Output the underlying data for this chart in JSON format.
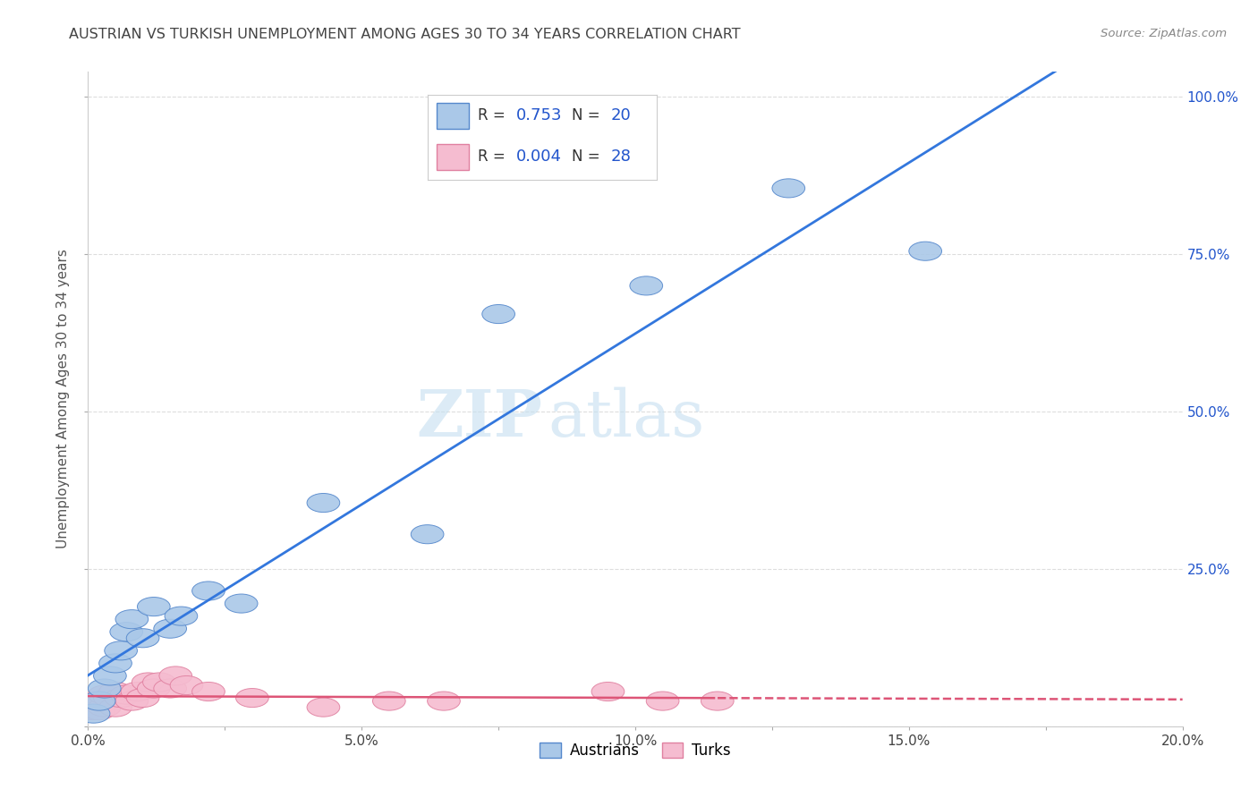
{
  "title": "AUSTRIAN VS TURKISH UNEMPLOYMENT AMONG AGES 30 TO 34 YEARS CORRELATION CHART",
  "source": "Source: ZipAtlas.com",
  "ylabel": "Unemployment Among Ages 30 to 34 years",
  "xlim": [
    0.0,
    0.2
  ],
  "ylim": [
    0.0,
    1.04
  ],
  "xticks": [
    0.0,
    0.025,
    0.05,
    0.075,
    0.1,
    0.125,
    0.15,
    0.175,
    0.2
  ],
  "xtick_labels": [
    "0.0%",
    "",
    "5.0%",
    "",
    "10.0%",
    "",
    "15.0%",
    "",
    "20.0%"
  ],
  "yticks": [
    0.0,
    0.25,
    0.5,
    0.75,
    1.0
  ],
  "ytick_labels_left": [
    "",
    "",
    "",
    "",
    ""
  ],
  "ytick_labels_right": [
    "",
    "25.0%",
    "50.0%",
    "75.0%",
    "100.0%"
  ],
  "watermark_zip": "ZIP",
  "watermark_atlas": "atlas",
  "legend_R_austrians": "0.753",
  "legend_N_austrians": "20",
  "legend_R_turks": "0.004",
  "legend_N_turks": "28",
  "austrians_x": [
    0.001,
    0.002,
    0.003,
    0.004,
    0.005,
    0.006,
    0.007,
    0.008,
    0.01,
    0.012,
    0.015,
    0.017,
    0.022,
    0.028,
    0.043,
    0.062,
    0.075,
    0.102,
    0.128,
    0.153
  ],
  "austrians_y": [
    0.02,
    0.04,
    0.06,
    0.08,
    0.1,
    0.12,
    0.15,
    0.17,
    0.14,
    0.19,
    0.155,
    0.175,
    0.215,
    0.195,
    0.355,
    0.305,
    0.655,
    0.7,
    0.855,
    0.755
  ],
  "turks_x": [
    0.001,
    0.001,
    0.002,
    0.002,
    0.003,
    0.003,
    0.004,
    0.005,
    0.005,
    0.006,
    0.007,
    0.008,
    0.009,
    0.01,
    0.011,
    0.012,
    0.013,
    0.015,
    0.016,
    0.018,
    0.022,
    0.03,
    0.043,
    0.055,
    0.065,
    0.095,
    0.105,
    0.115
  ],
  "turks_y": [
    0.025,
    0.035,
    0.025,
    0.04,
    0.03,
    0.05,
    0.045,
    0.03,
    0.055,
    0.045,
    0.05,
    0.04,
    0.055,
    0.045,
    0.07,
    0.06,
    0.07,
    0.06,
    0.08,
    0.065,
    0.055,
    0.045,
    0.03,
    0.04,
    0.04,
    0.055,
    0.04,
    0.04
  ],
  "austrians_color": "#aac8e8",
  "austrians_edge": "#5588cc",
  "turks_color": "#f5bcd0",
  "turks_edge": "#e080a0",
  "trend_austrians_color": "#3377dd",
  "trend_turks_color": "#dd5577",
  "background_color": "#ffffff",
  "grid_color": "#dddddd",
  "title_color": "#444444",
  "axis_label_color": "#555555",
  "right_tick_color": "#2255cc",
  "legend_box_color": "#cccccc"
}
